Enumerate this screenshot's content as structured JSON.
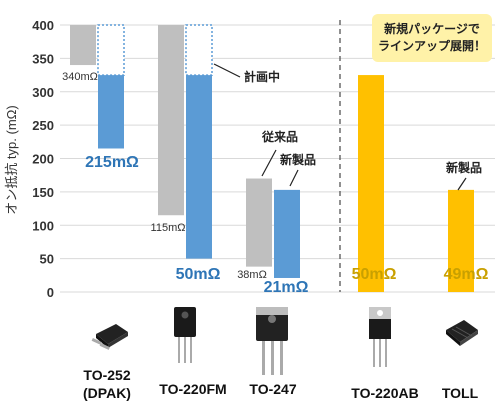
{
  "chart_data": {
    "type": "bar",
    "ylabel": "オン抵抗 typ. (mΩ)",
    "ylim": [
      0,
      400
    ],
    "yticks": [
      0,
      50,
      100,
      150,
      200,
      250,
      300,
      350,
      400
    ],
    "grid": true,
    "packages": [
      "TO-252 (DPAK)",
      "TO-220FM",
      "TO-247",
      "TO-220AB",
      "TOLL"
    ],
    "series": [
      {
        "name": "従来品",
        "color": "#bfbfbf",
        "values": [
          340,
          115,
          38,
          null,
          null
        ]
      },
      {
        "name": "新製品",
        "color": "#5b9bd5",
        "values": [
          215,
          50,
          21,
          null,
          null
        ]
      },
      {
        "name": "新製品",
        "color": "#ffc000",
        "values": [
          null,
          null,
          null,
          50,
          49
        ]
      }
    ],
    "planned": {
      "label": "計画中",
      "packages": [
        "TO-252 (DPAK)",
        "TO-220FM"
      ]
    },
    "labels": {
      "gray": [
        "340mΩ",
        "115mΩ",
        "38mΩ"
      ],
      "blue": [
        "215mΩ",
        "50mΩ",
        "21mΩ"
      ],
      "yellow": [
        "50mΩ",
        "49mΩ"
      ]
    },
    "annotations": {
      "planned": "計画中",
      "conventional": "従来品",
      "new_blue": "新製品",
      "new_yellow": "新製品"
    },
    "callout": [
      "新規パッケージで",
      "ラインアップ展開！"
    ]
  },
  "packages": {
    "to252_line1": "TO-252",
    "to252_line2": "(DPAK)",
    "to220fm": "TO-220FM",
    "to247": "TO-247",
    "to220ab": "TO-220AB",
    "toll": "TOLL"
  },
  "colors": {
    "gray": "#bfbfbf",
    "blue": "#5b9bd5",
    "yellow": "#ffc000",
    "label_blue": "#2e75b6",
    "label_gold": "#c9a000",
    "callout_bg": "#fff2a8"
  },
  "icons": [
    "dpak-package-icon",
    "to220fm-package-icon",
    "to247-package-icon",
    "to220ab-package-icon",
    "toll-package-icon"
  ]
}
